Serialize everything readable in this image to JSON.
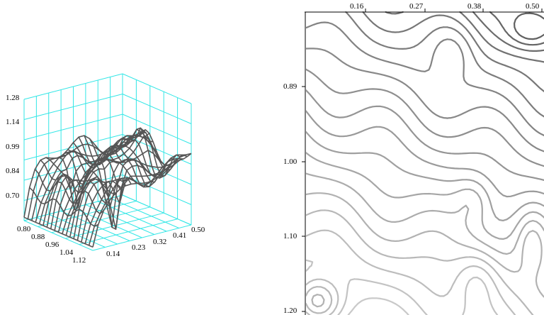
{
  "chart_data": [
    {
      "type": "surface",
      "title": "",
      "xlabel": "",
      "ylabel": "",
      "zlabel": "",
      "x_axis": {
        "range": [
          0.8,
          1.12
        ],
        "ticks": [
          "0.80",
          "0.88",
          "0.96",
          "1.04",
          "1.12"
        ]
      },
      "y_axis": {
        "range": [
          0.05,
          0.5
        ],
        "ticks": [
          "0.14",
          "0.23",
          "0.32",
          "0.41",
          "0.50"
        ]
      },
      "z_axis": {
        "range": [
          0.6,
          1.32
        ],
        "ticks": [
          "0.70",
          "0.84",
          "0.99",
          "1.14",
          "1.28"
        ]
      },
      "grid_color": "#33e6e6",
      "mesh_color": "#555555",
      "grid": true
    },
    {
      "type": "contour",
      "title": "",
      "x_axis": {
        "range": [
          0.07,
          0.52
        ],
        "ticks": [
          "0.16",
          "0.27",
          "0.38",
          "0.50"
        ],
        "position": "top"
      },
      "y_axis": {
        "range": [
          0.8,
          1.2
        ],
        "ticks": [
          "0.89",
          "1.00",
          "1.10",
          "1.20"
        ],
        "inverted": true
      },
      "levels": 20,
      "color_low": "#5a5a5a",
      "color_high": "#cfcfcf",
      "grid": false
    }
  ]
}
